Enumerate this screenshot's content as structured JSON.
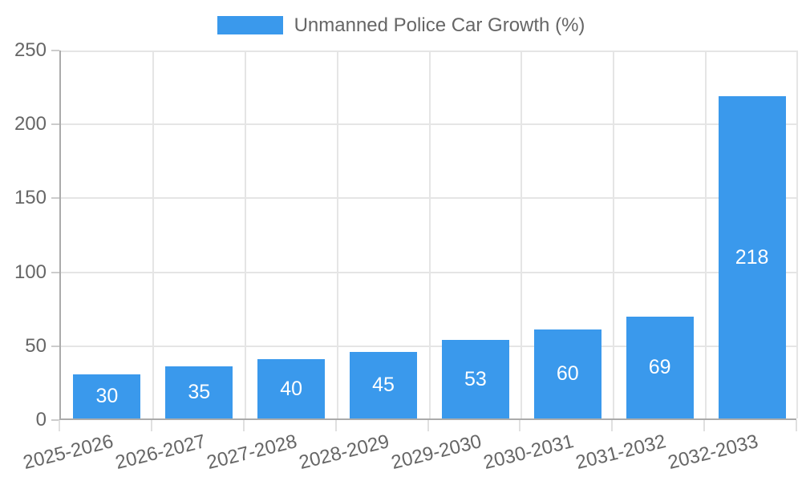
{
  "legend": {
    "label": "Unmanned Police Car Growth (%)"
  },
  "chart_data": {
    "type": "bar",
    "title": "Unmanned Police Car Growth (%)",
    "categories": [
      "2025-2026",
      "2026-2027",
      "2027-2028",
      "2028-2029",
      "2029-2030",
      "2030-2031",
      "2031-2032",
      "2032-2033"
    ],
    "values": [
      30,
      35,
      40,
      45,
      53,
      60,
      69,
      218
    ],
    "xlabel": "",
    "ylabel": "",
    "ylim": [
      0,
      250
    ],
    "yticks": [
      0,
      50,
      100,
      150,
      200,
      250
    ],
    "grid": true,
    "legend_position": "top",
    "bar_labels_inside": true
  },
  "colors": {
    "bar": "#3a99ec",
    "grid": "#e5e5e5",
    "axis": "#ababab",
    "tick": "#cccccc",
    "text": "#666666",
    "value_label": "#ffffff",
    "background": "#ffffff"
  }
}
